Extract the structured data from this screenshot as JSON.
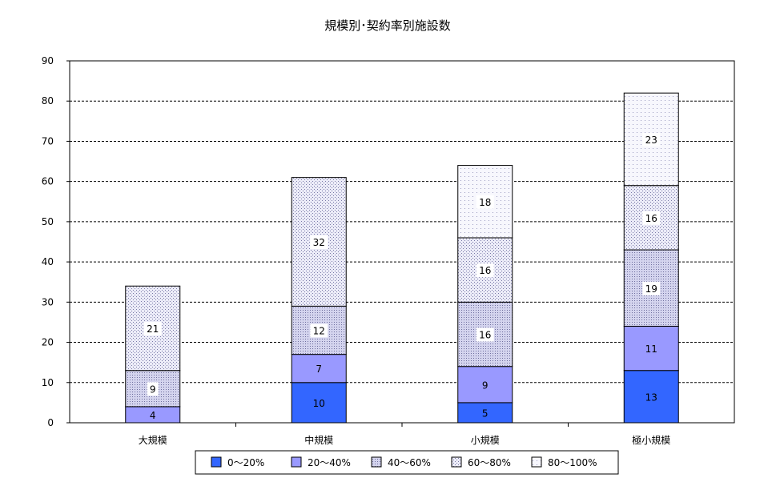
{
  "chart_data": {
    "type": "bar",
    "stacked": true,
    "title": "規模別･契約率別施設数",
    "xlabel": "",
    "ylabel": "",
    "categories": [
      "大規模",
      "中規模",
      "小規模",
      "極小規模"
    ],
    "series": [
      {
        "name": "0～20%",
        "values": [
          0,
          10,
          5,
          13
        ],
        "color": "#3366ff",
        "pattern": "solid"
      },
      {
        "name": "20～40%",
        "values": [
          4,
          7,
          9,
          11
        ],
        "color": "#9999ff",
        "pattern": "solid"
      },
      {
        "name": "40～60%",
        "values": [
          9,
          12,
          16,
          19
        ],
        "color": "#c9c9f0",
        "pattern": "dots-dense"
      },
      {
        "name": "60～80%",
        "values": [
          21,
          32,
          16,
          16
        ],
        "color": "#e3e3f7",
        "pattern": "dots"
      },
      {
        "name": "80～100%",
        "values": [
          0,
          0,
          18,
          23
        ],
        "color": "#f2f2fb",
        "pattern": "dots-sparse"
      }
    ],
    "data_labels": [
      [
        null,
        "10",
        "5",
        "13"
      ],
      [
        "4",
        "7",
        "9",
        "11"
      ],
      [
        "9",
        "12",
        "16",
        "19"
      ],
      [
        "21",
        "32",
        "16",
        "16"
      ],
      [
        null,
        null,
        "18",
        "23"
      ]
    ],
    "ylim": [
      0,
      90
    ],
    "yticks": [
      0,
      10,
      20,
      30,
      40,
      50,
      60,
      70,
      80,
      90
    ],
    "grid": "horizontal-dashed",
    "legend_position": "bottom"
  }
}
